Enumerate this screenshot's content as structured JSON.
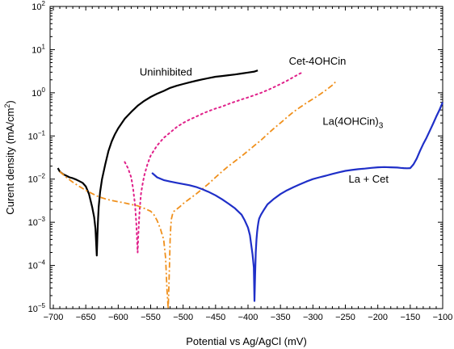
{
  "chart_data": {
    "type": "line",
    "title": "",
    "xlabel": "Potential vs Ag/AgCl (mV)",
    "ylabel_main": "Curent density (mA/cm",
    "ylabel_sup": "2",
    "ylabel_end": ")",
    "xlim": [
      -705,
      -100
    ],
    "ylim": [
      1e-05,
      100
    ],
    "yscale": "log",
    "grid": false,
    "x_ticks": [
      -700,
      -650,
      -600,
      -550,
      -500,
      -450,
      -400,
      -350,
      -300,
      -250,
      -200,
      -150,
      -100
    ],
    "x_tick_labels": [
      "−700",
      "−650",
      "−600",
      "−550",
      "−500",
      "−450",
      "−400",
      "−350",
      "−300",
      "−250",
      "−200",
      "−150",
      "−100"
    ],
    "y_ticks": [
      {
        "value": 100,
        "base": "10",
        "exp": "2"
      },
      {
        "value": 10,
        "base": "10",
        "exp": "1"
      },
      {
        "value": 1,
        "base": "10",
        "exp": "0"
      },
      {
        "value": 0.1,
        "base": "10",
        "exp": "−1"
      },
      {
        "value": 0.01,
        "base": "10",
        "exp": "−2"
      },
      {
        "value": 0.001,
        "base": "10",
        "exp": "−3"
      },
      {
        "value": 0.0001,
        "base": "10",
        "exp": "−4"
      },
      {
        "value": 1e-05,
        "base": "10",
        "exp": "−5"
      }
    ],
    "series": [
      {
        "name": "Uninhibited",
        "color": "#000000",
        "style": "solid",
        "x": [
          -693,
          -690,
          -685,
          -680,
          -675,
          -670,
          -665,
          -660,
          -655,
          -650,
          -645,
          -640,
          -637,
          -635,
          -633,
          -632,
          -631,
          -630,
          -628,
          -625,
          -620,
          -615,
          -610,
          -605,
          -600,
          -590,
          -580,
          -570,
          -560,
          -550,
          -540,
          -530,
          -520,
          -510,
          -500,
          -490,
          -480,
          -470,
          -460,
          -450,
          -440,
          -430,
          -420,
          -410,
          -400,
          -390,
          -385
        ],
        "y": [
          0.018,
          0.015,
          0.013,
          0.012,
          0.011,
          0.0105,
          0.0098,
          0.009,
          0.0082,
          0.0068,
          0.0045,
          0.0022,
          0.0013,
          0.0007,
          0.00017,
          0.0005,
          0.0012,
          0.0023,
          0.005,
          0.01,
          0.022,
          0.045,
          0.075,
          0.11,
          0.15,
          0.25,
          0.36,
          0.5,
          0.65,
          0.8,
          0.95,
          1.1,
          1.3,
          1.45,
          1.6,
          1.75,
          1.9,
          2.05,
          2.2,
          2.35,
          2.45,
          2.55,
          2.65,
          2.8,
          2.95,
          3.1,
          3.3
        ]
      },
      {
        "name": "Cet-4OHCin",
        "color": "#e0218a",
        "style": "dotted",
        "x": [
          -590,
          -585,
          -580,
          -577,
          -574,
          -572,
          -570,
          -569,
          -568,
          -567,
          -566,
          -565,
          -563,
          -560,
          -555,
          -550,
          -540,
          -530,
          -520,
          -510,
          -500,
          -490,
          -480,
          -470,
          -460,
          -450,
          -440,
          -430,
          -420,
          -410,
          -400,
          -390,
          -380,
          -370,
          -360,
          -350,
          -340,
          -330,
          -320,
          -315
        ],
        "y": [
          0.025,
          0.018,
          0.011,
          0.006,
          0.0025,
          0.0009,
          0.0002,
          0.0005,
          0.0011,
          0.002,
          0.003,
          0.0045,
          0.007,
          0.012,
          0.022,
          0.035,
          0.06,
          0.09,
          0.12,
          0.16,
          0.2,
          0.24,
          0.28,
          0.33,
          0.38,
          0.43,
          0.48,
          0.55,
          0.62,
          0.7,
          0.78,
          0.88,
          1.0,
          1.15,
          1.35,
          1.6,
          1.9,
          2.3,
          2.8,
          3.0
        ]
      },
      {
        "name": "La(4OHCin)3",
        "color": "#f0901c",
        "style": "dashdot",
        "x": [
          -690,
          -680,
          -670,
          -660,
          -650,
          -640,
          -630,
          -620,
          -610,
          -600,
          -590,
          -580,
          -570,
          -560,
          -550,
          -545,
          -540,
          -535,
          -530,
          -527,
          -525,
          -523,
          -522,
          -521,
          -520,
          -519,
          -518,
          -516,
          -514,
          -510,
          -505,
          -500,
          -490,
          -480,
          -470,
          -460,
          -450,
          -440,
          -430,
          -420,
          -410,
          -400,
          -390,
          -380,
          -370,
          -360,
          -350,
          -340,
          -330,
          -320,
          -310,
          -300,
          -290,
          -280,
          -270,
          -265
        ],
        "y": [
          0.015,
          0.011,
          0.0085,
          0.0068,
          0.0055,
          0.0046,
          0.0039,
          0.0035,
          0.0032,
          0.003,
          0.0028,
          0.0026,
          0.0024,
          0.0021,
          0.0018,
          0.0015,
          0.0011,
          0.0007,
          0.0004,
          0.00015,
          3e-05,
          1e-05,
          3e-05,
          0.0001,
          0.0004,
          0.0008,
          0.0012,
          0.0016,
          0.0018,
          0.002,
          0.0023,
          0.0027,
          0.0035,
          0.0045,
          0.006,
          0.008,
          0.011,
          0.015,
          0.02,
          0.026,
          0.034,
          0.045,
          0.06,
          0.08,
          0.11,
          0.15,
          0.2,
          0.27,
          0.36,
          0.46,
          0.58,
          0.72,
          0.9,
          1.15,
          1.5,
          1.8
        ]
      },
      {
        "name": "La + Cet",
        "color": "#1f2fc8",
        "style": "solid",
        "x": [
          -548,
          -540,
          -530,
          -520,
          -510,
          -500,
          -490,
          -480,
          -470,
          -460,
          -450,
          -440,
          -430,
          -420,
          -410,
          -405,
          -400,
          -397,
          -395,
          -393,
          -391,
          -390,
          -389,
          -388,
          -387,
          -386,
          -385,
          -384,
          -383,
          -382,
          -380,
          -375,
          -370,
          -360,
          -350,
          -340,
          -330,
          -320,
          -310,
          -300,
          -290,
          -280,
          -270,
          -260,
          -250,
          -240,
          -230,
          -220,
          -210,
          -200,
          -190,
          -180,
          -170,
          -165,
          -160,
          -155,
          -150,
          -145,
          -140,
          -135,
          -130,
          -125,
          -120,
          -115,
          -110,
          -105,
          -100
        ],
        "y": [
          0.014,
          0.011,
          0.0095,
          0.0088,
          0.0082,
          0.0077,
          0.0072,
          0.0066,
          0.0058,
          0.005,
          0.0042,
          0.0034,
          0.0027,
          0.0021,
          0.0015,
          0.0011,
          0.00075,
          0.0005,
          0.0003,
          0.00018,
          9e-05,
          1.5e-05,
          6e-05,
          0.0002,
          0.0004,
          0.0006,
          0.0008,
          0.001,
          0.0012,
          0.0013,
          0.0015,
          0.002,
          0.0026,
          0.0035,
          0.0045,
          0.0055,
          0.0065,
          0.0076,
          0.0088,
          0.01,
          0.011,
          0.012,
          0.0132,
          0.0144,
          0.0155,
          0.0163,
          0.017,
          0.0175,
          0.0182,
          0.0188,
          0.019,
          0.0188,
          0.0185,
          0.0182,
          0.018,
          0.0178,
          0.018,
          0.022,
          0.03,
          0.045,
          0.065,
          0.09,
          0.13,
          0.19,
          0.28,
          0.4,
          0.6
        ]
      }
    ],
    "annotations": [
      {
        "text": "Uninhibited",
        "x": -567,
        "y": 2.5
      },
      {
        "text": "Cet-4OHCin",
        "x": -337,
        "y": 4.5
      },
      {
        "text": "La + Cet",
        "x": -245,
        "y": 0.0083
      }
    ],
    "annotation_la4ohcin": {
      "main": "La(4OHCin)",
      "sub": "3",
      "x": -285,
      "y": 0.18
    }
  }
}
